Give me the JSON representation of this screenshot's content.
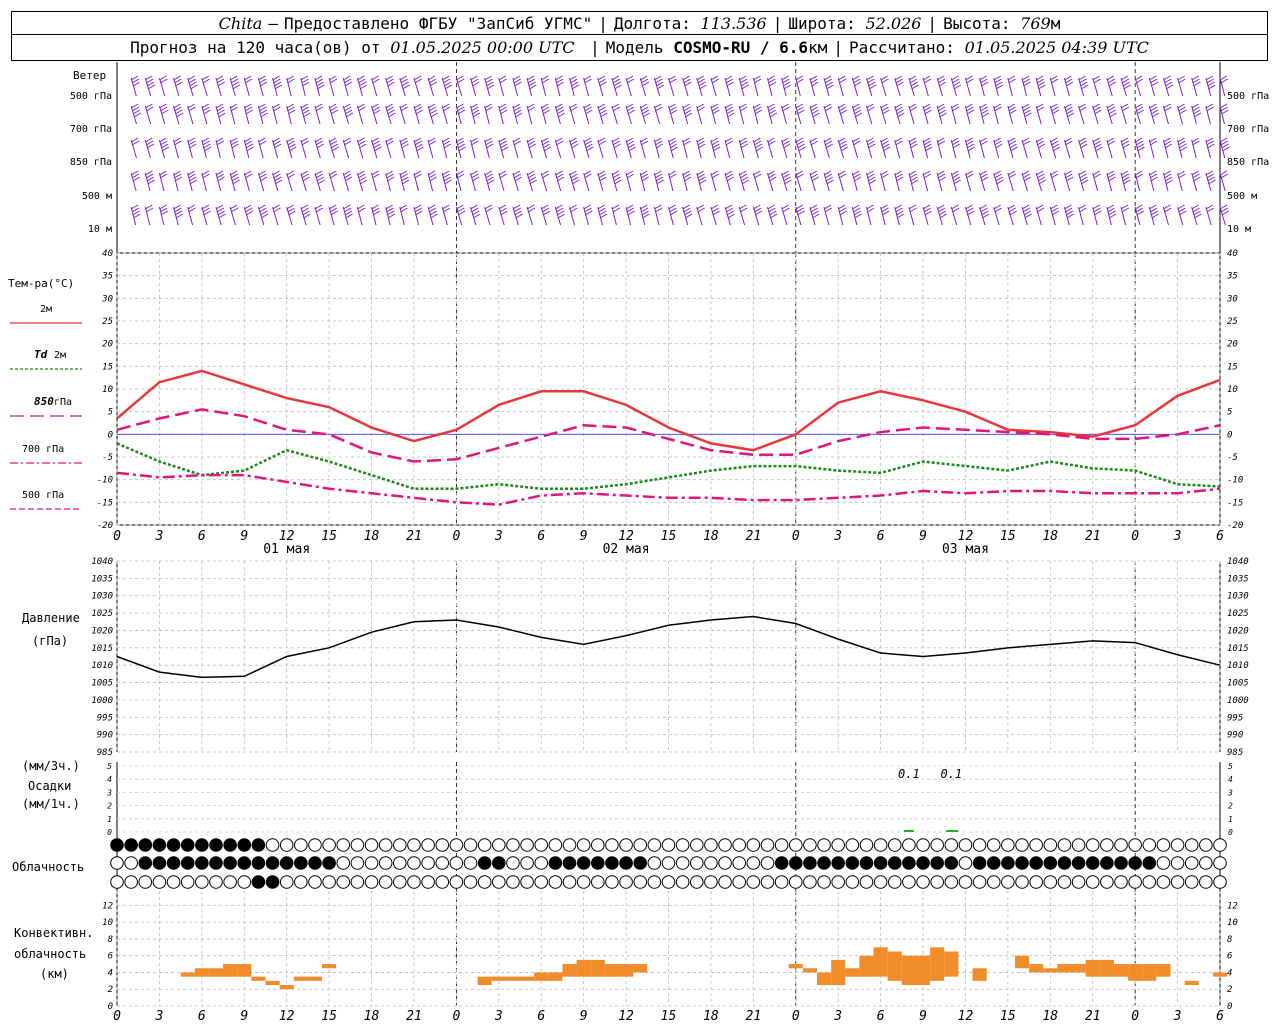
{
  "header": {
    "station": "Chita",
    "dash": "–",
    "provider": "Предоставлено ФГБУ \"ЗапСиб УГМС\"",
    "lon_label": "Долгота:",
    "lon_value": "113.536",
    "lat_label": "Широта:",
    "lat_value": "52.026",
    "alt_label": "Высота:",
    "alt_value": "769",
    "alt_unit": "м",
    "forecast_label": "Прогноз на 120 часа(ов) от",
    "forecast_start": "01.05.2025 00:00 UTC",
    "model_label": "Модель",
    "model_name": "COSMO-RU / 6.6",
    "model_unit": "км",
    "calc_label": "Рассчитано:",
    "calc_time": "01.05.2025 04:39 UTC"
  },
  "wind": {
    "title": "Ветер",
    "levels": [
      "500 гПа",
      "700 гПа",
      "850 гПа",
      "500 м",
      "10 м"
    ],
    "color": "#7b1fd1"
  },
  "time_axis": {
    "hours": [
      "0",
      "3",
      "6",
      "9",
      "12",
      "15",
      "18",
      "21",
      "0",
      "3",
      "6",
      "9",
      "12",
      "15",
      "18",
      "21",
      "0",
      "3",
      "6",
      "9",
      "12",
      "15",
      "18",
      "21",
      "0",
      "3",
      "6"
    ],
    "days": [
      "01 мая",
      "02 мая",
      "03 мая"
    ]
  },
  "temperature": {
    "title": "Тем-ра(°C)",
    "ticks": [
      "40",
      "35",
      "30",
      "25",
      "20",
      "15",
      "10",
      "5",
      "0",
      "-5",
      "-10",
      "-15",
      "-20"
    ],
    "legend": [
      {
        "label": "2м",
        "color": "#e8373a"
      },
      {
        "label_it": "Td",
        "label": "2м",
        "color": "#1a8a1a"
      },
      {
        "label_it": "850",
        "label": "гПа",
        "color": "#e0167f"
      },
      {
        "label": "700 гПа",
        "color": "#e0167f"
      },
      {
        "label": "500 гПа",
        "color": "#e0167f"
      }
    ]
  },
  "pressure": {
    "title1": "Давление",
    "title2": "(гПа)",
    "ticks": [
      "1040",
      "1035",
      "1030",
      "1025",
      "1020",
      "1015",
      "1010",
      "1005",
      "1000",
      "995",
      "990",
      "985"
    ]
  },
  "precip": {
    "title1": "(мм/3ч.)",
    "title2": "Осадки",
    "title3": "(мм/1ч.)",
    "ticks": [
      "5",
      "4",
      "3",
      "2",
      "1",
      "0"
    ],
    "labels": [
      "0.1",
      "0.1"
    ]
  },
  "cloud": {
    "title": "Облачность"
  },
  "convective": {
    "title1": "Конвективн.",
    "title2": "облачность",
    "title3": "(км)",
    "ticks": [
      "12",
      "10",
      "8",
      "6",
      "4",
      "2",
      "0"
    ]
  },
  "chart_data": [
    {
      "type": "line",
      "title": "Тем-ра(°C)",
      "ylim": [
        -20,
        40
      ],
      "x_hours": [
        0,
        3,
        6,
        9,
        12,
        15,
        18,
        21,
        24,
        27,
        30,
        33,
        36,
        39,
        42,
        45,
        48,
        51,
        54,
        57,
        60,
        63,
        66,
        69,
        72,
        75,
        78
      ],
      "series": [
        {
          "name": "2м",
          "color": "#e8373a",
          "values": [
            3.5,
            11.5,
            14.0,
            11.0,
            8.0,
            6.0,
            1.5,
            -1.5,
            1.0,
            6.5,
            9.5,
            9.5,
            6.5,
            1.5,
            -2.0,
            -3.5,
            0.0,
            7.0,
            9.5,
            7.5,
            5.0,
            1.0,
            0.5,
            -0.5,
            2.0,
            8.5,
            12.0
          ]
        },
        {
          "name": "Td 2м",
          "color": "#1a8a1a",
          "values": [
            -2.0,
            -6.0,
            -9.0,
            -8.0,
            -3.5,
            -6.0,
            -9.0,
            -12.0,
            -12.0,
            -11.0,
            -12.0,
            -12.0,
            -11.0,
            -9.5,
            -8.0,
            -7.0,
            -7.0,
            -8.0,
            -8.5,
            -6.0,
            -7.0,
            -8.0,
            -6.0,
            -7.5,
            -8.0,
            -11.0,
            -11.5
          ]
        },
        {
          "name": "850 гПа",
          "color": "#e0167f",
          "values": [
            1.0,
            3.5,
            5.5,
            4.0,
            1.0,
            0.0,
            -4.0,
            -6.0,
            -5.5,
            -3.0,
            -0.5,
            2.0,
            1.5,
            -1.0,
            -3.5,
            -4.5,
            -4.5,
            -1.5,
            0.5,
            1.5,
            1.0,
            0.5,
            0.0,
            -1.0,
            -1.0,
            0.0,
            2.0
          ]
        },
        {
          "name": "700 гПа",
          "color": "#e0167f",
          "values": [
            -8.5,
            -9.5,
            -9.0,
            -9.0,
            -10.5,
            -12.0,
            -13.0,
            -14.0,
            -15.0,
            -15.5,
            -13.5,
            -13.0,
            -13.5,
            -14.0,
            -14.0,
            -14.5,
            -14.5,
            -14.0,
            -13.5,
            -12.5,
            -13.0,
            -12.5,
            -12.5,
            -13.0,
            -13.0,
            -13.0,
            -12.0
          ]
        }
      ]
    },
    {
      "type": "line",
      "title": "Давление (гПа)",
      "ylim": [
        985,
        1040
      ],
      "x_hours": [
        0,
        3,
        6,
        9,
        12,
        15,
        18,
        21,
        24,
        27,
        30,
        33,
        36,
        39,
        42,
        45,
        48,
        51,
        54,
        57,
        60,
        63,
        66,
        69,
        72,
        75,
        78
      ],
      "series": [
        {
          "name": "Давление",
          "color": "#000000",
          "values": [
            1012.5,
            1008.0,
            1006.5,
            1006.8,
            1012.5,
            1015.0,
            1019.5,
            1022.5,
            1023.0,
            1021.0,
            1018.0,
            1016.0,
            1018.5,
            1021.5,
            1023.0,
            1024.0,
            1022.0,
            1017.5,
            1013.5,
            1012.5,
            1013.5,
            1015.0,
            1016.0,
            1017.0,
            1016.5,
            1013.0,
            1010.0
          ]
        }
      ]
    },
    {
      "type": "bar",
      "title": "Конвективн. облачность (км)",
      "ylim": [
        0,
        13
      ],
      "bars": [
        {
          "h": 5,
          "lo": 3.5,
          "hi": 4.0
        },
        {
          "h": 6,
          "lo": 3.5,
          "hi": 4.5
        },
        {
          "h": 7,
          "lo": 3.5,
          "hi": 4.5
        },
        {
          "h": 8,
          "lo": 3.5,
          "hi": 5.0
        },
        {
          "h": 9,
          "lo": 3.5,
          "hi": 5.0
        },
        {
          "h": 10,
          "lo": 3.0,
          "hi": 3.5
        },
        {
          "h": 11,
          "lo": 2.5,
          "hi": 3.0
        },
        {
          "h": 12,
          "lo": 2.0,
          "hi": 2.5
        },
        {
          "h": 13,
          "lo": 3.0,
          "hi": 3.5
        },
        {
          "h": 14,
          "lo": 3.0,
          "hi": 3.5
        },
        {
          "h": 15,
          "lo": 4.5,
          "hi": 5.0
        },
        {
          "h": 26,
          "lo": 2.5,
          "hi": 3.5
        },
        {
          "h": 27,
          "lo": 3.0,
          "hi": 3.5
        },
        {
          "h": 28,
          "lo": 3.0,
          "hi": 3.5
        },
        {
          "h": 29,
          "lo": 3.0,
          "hi": 3.5
        },
        {
          "h": 30,
          "lo": 3.0,
          "hi": 4.0
        },
        {
          "h": 31,
          "lo": 3.0,
          "hi": 4.0
        },
        {
          "h": 32,
          "lo": 3.5,
          "hi": 5.0
        },
        {
          "h": 33,
          "lo": 3.5,
          "hi": 5.5
        },
        {
          "h": 34,
          "lo": 3.5,
          "hi": 5.5
        },
        {
          "h": 35,
          "lo": 3.5,
          "hi": 5.0
        },
        {
          "h": 36,
          "lo": 3.5,
          "hi": 5.0
        },
        {
          "h": 37,
          "lo": 4.0,
          "hi": 5.0
        },
        {
          "h": 48,
          "lo": 4.5,
          "hi": 5.0
        },
        {
          "h": 49,
          "lo": 4.0,
          "hi": 4.5
        },
        {
          "h": 50,
          "lo": 2.5,
          "hi": 4.0
        },
        {
          "h": 51,
          "lo": 2.5,
          "hi": 5.5
        },
        {
          "h": 52,
          "lo": 3.5,
          "hi": 4.5
        },
        {
          "h": 53,
          "lo": 3.5,
          "hi": 6.0
        },
        {
          "h": 54,
          "lo": 3.5,
          "hi": 7.0
        },
        {
          "h": 55,
          "lo": 3.0,
          "hi": 6.5
        },
        {
          "h": 56,
          "lo": 2.5,
          "hi": 6.0
        },
        {
          "h": 57,
          "lo": 2.5,
          "hi": 6.0
        },
        {
          "h": 58,
          "lo": 3.0,
          "hi": 7.0
        },
        {
          "h": 59,
          "lo": 3.5,
          "hi": 6.5
        },
        {
          "h": 61,
          "lo": 3.0,
          "hi": 4.5
        },
        {
          "h": 64,
          "lo": 4.5,
          "hi": 6.0
        },
        {
          "h": 65,
          "lo": 4.0,
          "hi": 5.0
        },
        {
          "h": 66,
          "lo": 4.0,
          "hi": 4.5
        },
        {
          "h": 67,
          "lo": 4.0,
          "hi": 5.0
        },
        {
          "h": 68,
          "lo": 4.0,
          "hi": 5.0
        },
        {
          "h": 69,
          "lo": 3.5,
          "hi": 5.5
        },
        {
          "h": 70,
          "lo": 3.5,
          "hi": 5.5
        },
        {
          "h": 71,
          "lo": 3.5,
          "hi": 5.0
        },
        {
          "h": 72,
          "lo": 3.0,
          "hi": 5.0
        },
        {
          "h": 73,
          "lo": 3.0,
          "hi": 5.0
        },
        {
          "h": 74,
          "lo": 3.5,
          "hi": 5.0
        },
        {
          "h": 76,
          "lo": 2.5,
          "hi": 3.0
        },
        {
          "h": 78,
          "lo": 3.5,
          "hi": 4.0
        }
      ]
    }
  ]
}
